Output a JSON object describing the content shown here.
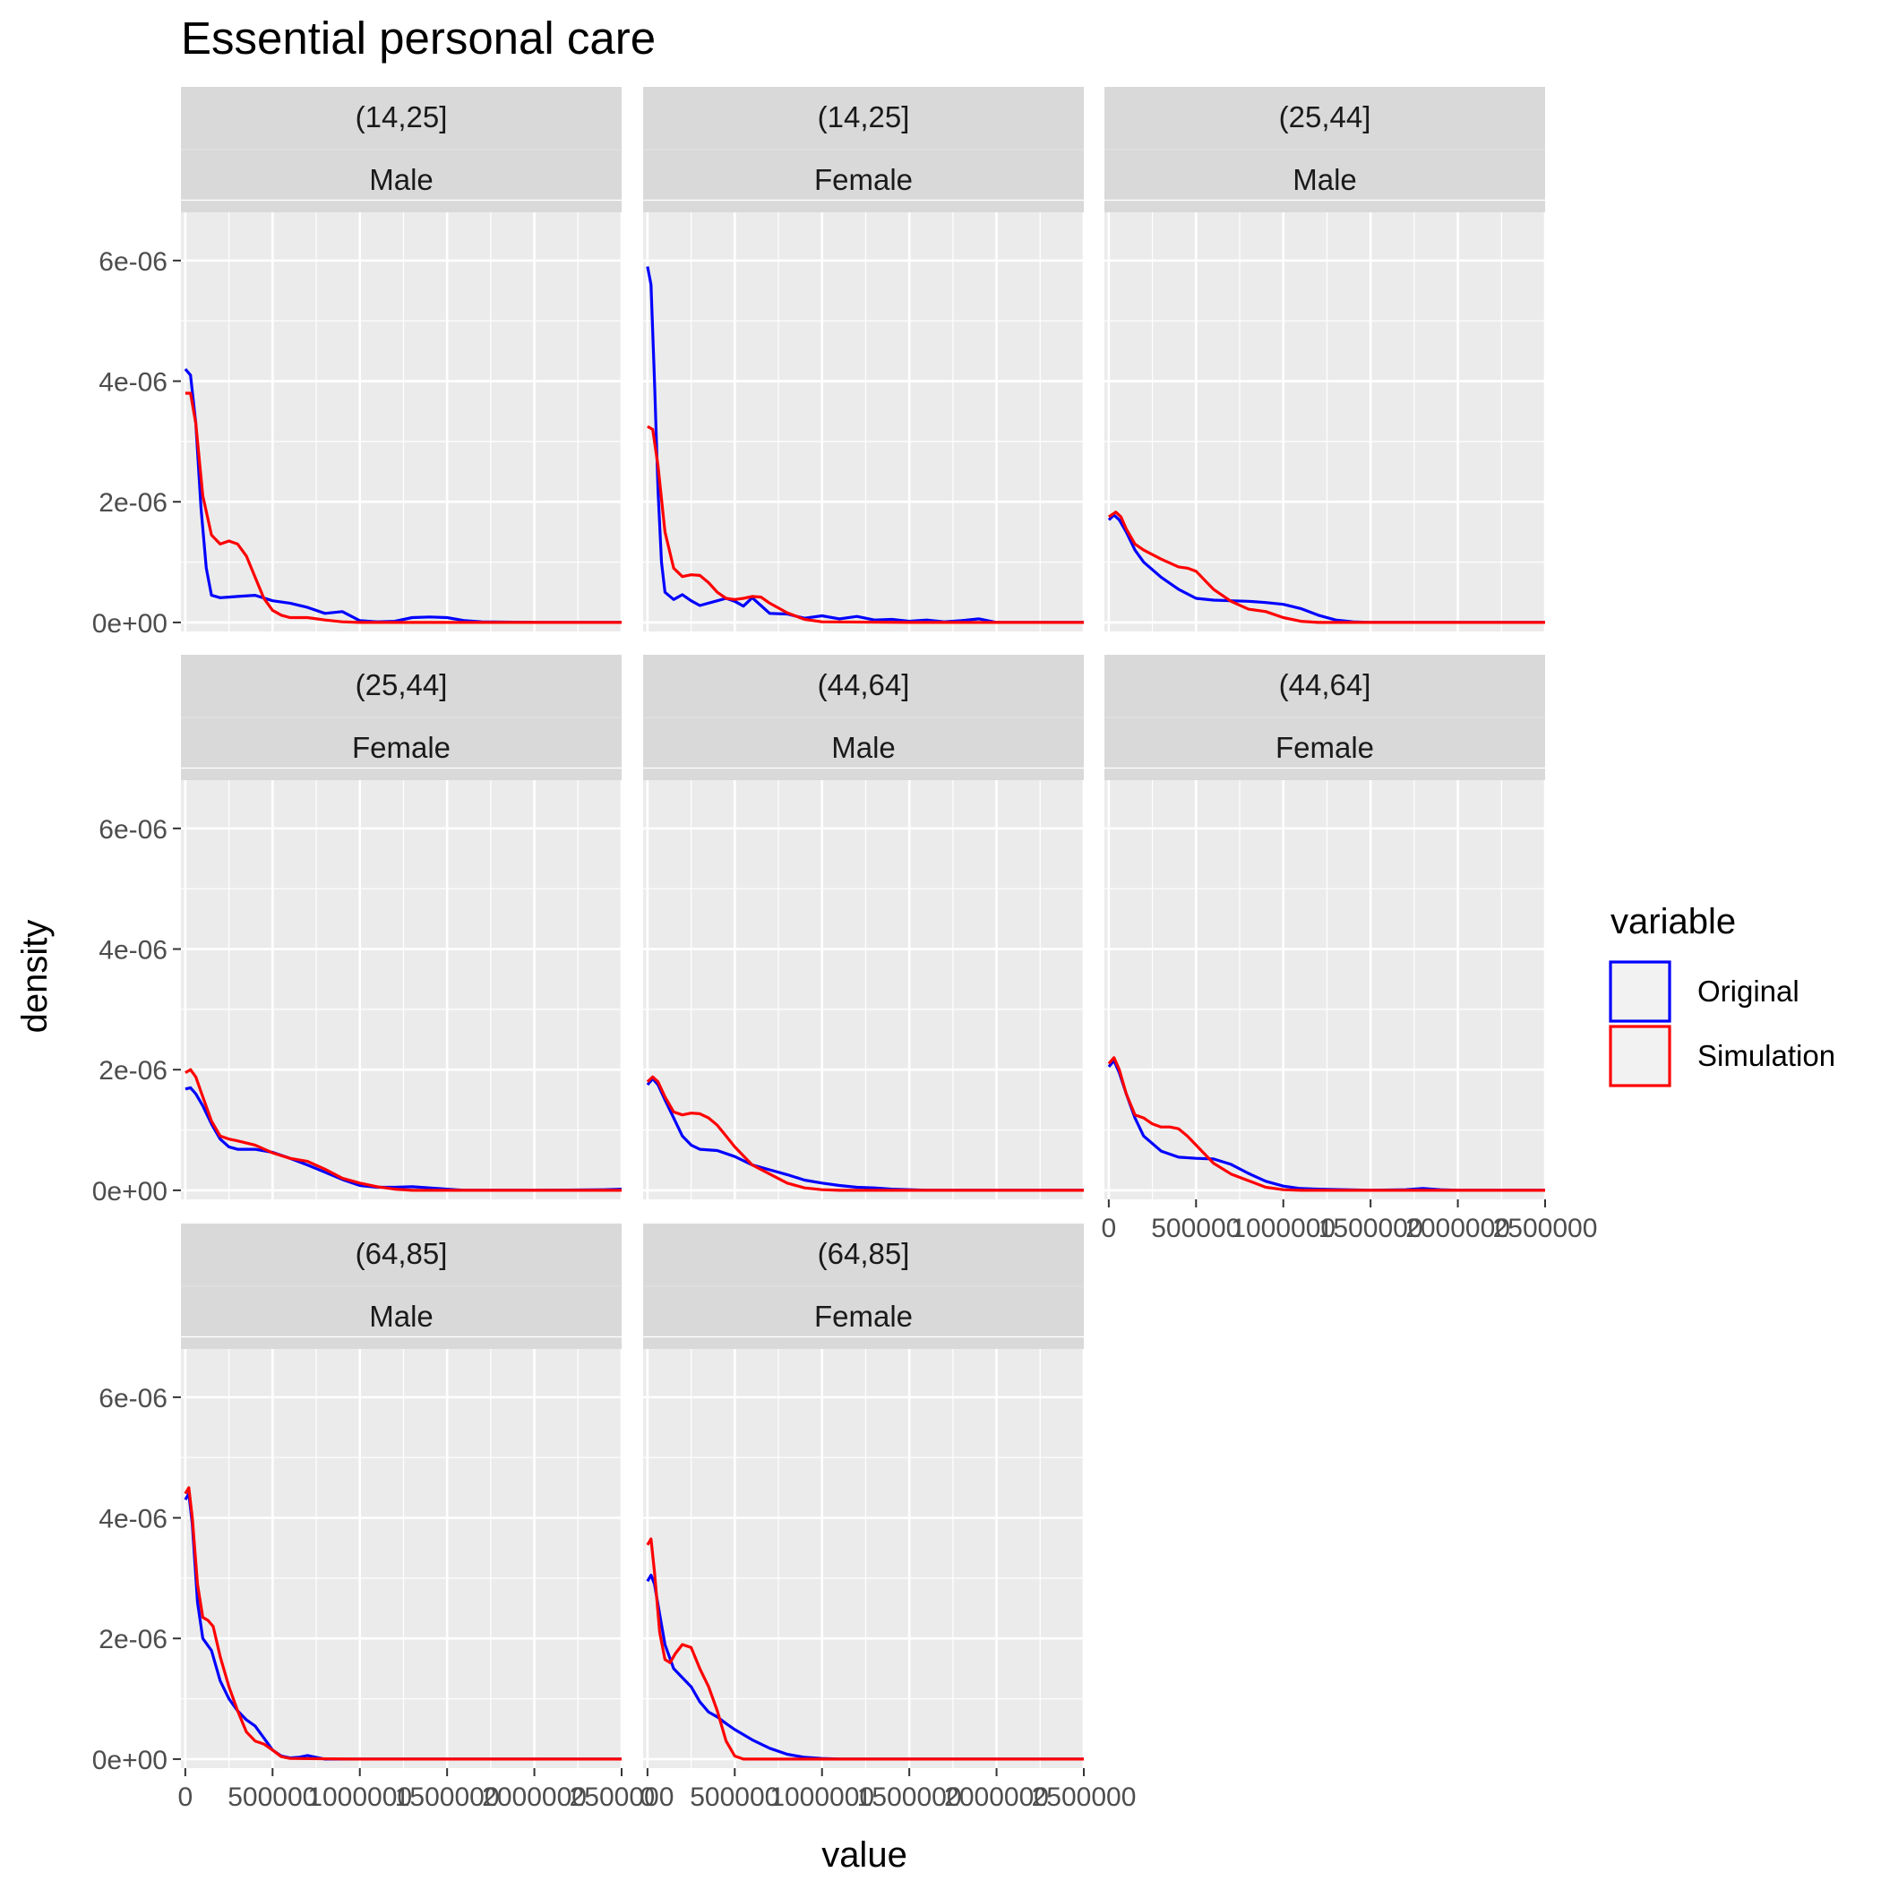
{
  "chart_data": {
    "type": "line",
    "title": "Essential personal care",
    "xlabel": "value",
    "ylabel": "density",
    "xlim": [
      -25000,
      2500000
    ],
    "ylim": [
      -1.5e-07,
      6.8e-06
    ],
    "x_ticks": [
      0,
      500000,
      1000000,
      1500000,
      2000000,
      2500000
    ],
    "x_tick_labels": [
      "0",
      "500000",
      "1000000",
      "1500000",
      "2000000",
      "2500000"
    ],
    "y_ticks": [
      0,
      2e-06,
      4e-06,
      6e-06
    ],
    "y_tick_labels": [
      "0e+00",
      "2e-06",
      "4e-06",
      "6e-06"
    ],
    "grid": true,
    "legend": {
      "title": "variable",
      "position": "right",
      "entries": [
        {
          "label": "Original",
          "color": "#0000FF"
        },
        {
          "label": "Simulation",
          "color": "#FF0000"
        }
      ]
    },
    "colors": {
      "panel_bg": "#EBEBEB",
      "strip_bg": "#D9D9D9",
      "grid": "#FFFFFF",
      "Original": "#0000FF",
      "Simulation": "#FF0000"
    },
    "panels": [
      {
        "age": "(14,25]",
        "sex": "Male",
        "series": [
          {
            "name": "Original",
            "x": [
              0,
              30000,
              60000,
              90000,
              120000,
              150000,
              200000,
              300000,
              400000,
              500000,
              600000,
              700000,
              800000,
              900000,
              1000000,
              1100000,
              1200000,
              1300000,
              1400000,
              1500000,
              1600000,
              1700000,
              2000000,
              2500000
            ],
            "y": [
              4.2e-06,
              4.1e-06,
              3.3e-06,
              1.9e-06,
              9e-07,
              4.5e-07,
              4.1e-07,
              4.3e-07,
              4.5e-07,
              3.6e-07,
              3.2e-07,
              2.5e-07,
              1.5e-07,
              1.8e-07,
              3e-08,
              1e-08,
              2e-08,
              8e-08,
              9e-08,
              8e-08,
              3e-08,
              1e-08,
              0,
              0
            ]
          },
          {
            "name": "Simulation",
            "x": [
              0,
              30000,
              60000,
              100000,
              150000,
              200000,
              250000,
              300000,
              350000,
              400000,
              450000,
              500000,
              550000,
              600000,
              700000,
              800000,
              900000,
              1000000,
              1500000,
              2500000
            ],
            "y": [
              3.8e-06,
              3.8e-06,
              3.3e-06,
              2.1e-06,
              1.45e-06,
              1.3e-06,
              1.35e-06,
              1.3e-06,
              1.1e-06,
              7.5e-07,
              4e-07,
              2e-07,
              1.2e-07,
              8e-08,
              8e-08,
              4e-08,
              1e-08,
              0,
              0,
              0
            ]
          }
        ]
      },
      {
        "age": "(14,25]",
        "sex": "Female",
        "series": [
          {
            "name": "Original",
            "x": [
              0,
              20000,
              40000,
              60000,
              80000,
              100000,
              150000,
              200000,
              250000,
              300000,
              400000,
              450000,
              500000,
              550000,
              600000,
              650000,
              700000,
              800000,
              900000,
              1000000,
              1100000,
              1200000,
              1300000,
              1400000,
              1500000,
              1600000,
              1700000,
              1800000,
              1900000,
              2000000,
              2500000
            ],
            "y": [
              5.9e-06,
              5.6e-06,
              4e-06,
              2.2e-06,
              1e-06,
              5e-07,
              3.8e-07,
              4.6e-07,
              3.6e-07,
              2.8e-07,
              3.6e-07,
              4e-07,
              3.5e-07,
              2.7e-07,
              4.1e-07,
              2.8e-07,
              1.5e-07,
              1.4e-07,
              7e-08,
              1.1e-07,
              6e-08,
              1e-07,
              4e-08,
              5e-08,
              2e-08,
              4e-08,
              1e-08,
              3e-08,
              6e-08,
              0,
              0
            ]
          },
          {
            "name": "Simulation",
            "x": [
              0,
              30000,
              60000,
              100000,
              150000,
              200000,
              250000,
              300000,
              350000,
              400000,
              450000,
              500000,
              550000,
              600000,
              650000,
              700000,
              800000,
              900000,
              1000000,
              1500000,
              2500000
            ],
            "y": [
              3.25e-06,
              3.2e-06,
              2.6e-06,
              1.5e-06,
              9e-07,
              7.6e-07,
              7.9e-07,
              7.8e-07,
              6.6e-07,
              5e-07,
              4e-07,
              3.8e-07,
              4e-07,
              4.3e-07,
              4.2e-07,
              3.2e-07,
              1.6e-07,
              5e-08,
              1e-08,
              0,
              0
            ]
          }
        ]
      },
      {
        "age": "(25,44]",
        "sex": "Male",
        "series": [
          {
            "name": "Original",
            "x": [
              0,
              30000,
              60000,
              100000,
              150000,
              200000,
              300000,
              400000,
              500000,
              600000,
              700000,
              800000,
              900000,
              1000000,
              1100000,
              1200000,
              1300000,
              1400000,
              1500000,
              2000000,
              2500000
            ],
            "y": [
              1.7e-06,
              1.78e-06,
              1.7e-06,
              1.5e-06,
              1.2e-06,
              1e-06,
              7.5e-07,
              5.5e-07,
              4e-07,
              3.7e-07,
              3.6e-07,
              3.5e-07,
              3.3e-07,
              3e-07,
              2.3e-07,
              1.2e-07,
              4e-08,
              1e-08,
              0,
              0,
              0
            ]
          },
          {
            "name": "Simulation",
            "x": [
              0,
              40000,
              70000,
              100000,
              150000,
              200000,
              300000,
              400000,
              450000,
              500000,
              550000,
              600000,
              650000,
              700000,
              800000,
              900000,
              1000000,
              1100000,
              1200000,
              1500000,
              2500000
            ],
            "y": [
              1.75e-06,
              1.83e-06,
              1.75e-06,
              1.55e-06,
              1.3e-06,
              1.2e-06,
              1.05e-06,
              9.2e-07,
              9e-07,
              8.5e-07,
              7e-07,
              5.5e-07,
              4.5e-07,
              3.5e-07,
              2.2e-07,
              1.8e-07,
              8e-08,
              2e-08,
              0,
              0,
              0
            ]
          }
        ]
      },
      {
        "age": "(25,44]",
        "sex": "Female",
        "series": [
          {
            "name": "Original",
            "x": [
              0,
              30000,
              60000,
              100000,
              150000,
              200000,
              250000,
              300000,
              400000,
              500000,
              600000,
              700000,
              800000,
              900000,
              1000000,
              1100000,
              1200000,
              1300000,
              1400000,
              1500000,
              1600000,
              2000000,
              2400000,
              2500000
            ],
            "y": [
              1.68e-06,
              1.7e-06,
              1.6e-06,
              1.4e-06,
              1.1e-06,
              8.5e-07,
              7.2e-07,
              6.8e-07,
              6.8e-07,
              6.3e-07,
              5.3e-07,
              4.2e-07,
              3e-07,
              1.8e-07,
              8e-08,
              5e-08,
              5e-08,
              6e-08,
              4e-08,
              2e-08,
              0,
              0,
              1e-08,
              2e-08
            ]
          },
          {
            "name": "Simulation",
            "x": [
              0,
              30000,
              60000,
              100000,
              150000,
              200000,
              250000,
              300000,
              400000,
              500000,
              600000,
              700000,
              800000,
              900000,
              1000000,
              1100000,
              1200000,
              1300000,
              1500000,
              2500000
            ],
            "y": [
              1.95e-06,
              2e-06,
              1.88e-06,
              1.55e-06,
              1.15e-06,
              9e-07,
              8.5e-07,
              8.2e-07,
              7.5e-07,
              6.2e-07,
              5.3e-07,
              4.8e-07,
              3.5e-07,
              2e-07,
              1.2e-07,
              6e-08,
              2e-08,
              0,
              0,
              0
            ]
          }
        ]
      },
      {
        "age": "(44,64]",
        "sex": "Male",
        "series": [
          {
            "name": "Original",
            "x": [
              0,
              30000,
              60000,
              100000,
              150000,
              200000,
              250000,
              300000,
              400000,
              500000,
              600000,
              700000,
              800000,
              900000,
              1000000,
              1100000,
              1200000,
              1300000,
              1400000,
              1500000,
              1600000,
              2000000,
              2500000
            ],
            "y": [
              1.75e-06,
              1.85e-06,
              1.75e-06,
              1.5e-06,
              1.2e-06,
              9e-07,
              7.5e-07,
              6.8e-07,
              6.6e-07,
              5.6e-07,
              4.2e-07,
              3.4e-07,
              2.6e-07,
              1.7e-07,
              1.2e-07,
              8e-08,
              5e-08,
              4e-08,
              2e-08,
              1e-08,
              0,
              0,
              0
            ]
          },
          {
            "name": "Simulation",
            "x": [
              0,
              30000,
              60000,
              100000,
              150000,
              200000,
              250000,
              300000,
              350000,
              400000,
              450000,
              500000,
              600000,
              700000,
              800000,
              900000,
              1000000,
              1100000,
              1500000,
              2500000
            ],
            "y": [
              1.8e-06,
              1.88e-06,
              1.8e-06,
              1.55e-06,
              1.3e-06,
              1.25e-06,
              1.28e-06,
              1.27e-06,
              1.2e-06,
              1.08e-06,
              9e-07,
              7.2e-07,
              4.2e-07,
              2.7e-07,
              1.2e-07,
              4e-08,
              1e-08,
              0,
              0,
              0
            ]
          }
        ]
      },
      {
        "age": "(44,64]",
        "sex": "Female",
        "series": [
          {
            "name": "Original",
            "x": [
              0,
              30000,
              60000,
              100000,
              150000,
              200000,
              300000,
              400000,
              500000,
              600000,
              700000,
              800000,
              900000,
              1000000,
              1100000,
              1200000,
              1500000,
              1700000,
              1800000,
              1900000,
              2000000,
              2500000
            ],
            "y": [
              2.05e-06,
              2.15e-06,
              1.95e-06,
              1.6e-06,
              1.2e-06,
              9e-07,
              6.5e-07,
              5.5e-07,
              5.3e-07,
              5.2e-07,
              4.3e-07,
              2.8e-07,
              1.5e-07,
              7e-08,
              3e-08,
              2e-08,
              0,
              1e-08,
              3e-08,
              1e-08,
              0,
              0
            ]
          },
          {
            "name": "Simulation",
            "x": [
              0,
              30000,
              60000,
              100000,
              150000,
              200000,
              250000,
              300000,
              350000,
              400000,
              450000,
              500000,
              550000,
              600000,
              700000,
              800000,
              900000,
              1000000,
              1100000,
              1500000,
              2500000
            ],
            "y": [
              2.1e-06,
              2.2e-06,
              2e-06,
              1.6e-06,
              1.25e-06,
              1.2e-06,
              1.1e-06,
              1.05e-06,
              1.05e-06,
              1.02e-06,
              9e-07,
              7.5e-07,
              6e-07,
              4.5e-07,
              2.7e-07,
              1.6e-07,
              5e-08,
              1e-08,
              0,
              0,
              0
            ]
          }
        ]
      },
      {
        "age": "(64,85]",
        "sex": "Male",
        "series": [
          {
            "name": "Original",
            "x": [
              0,
              20000,
              40000,
              70000,
              100000,
              150000,
              200000,
              250000,
              300000,
              350000,
              400000,
              450000,
              500000,
              550000,
              600000,
              650000,
              700000,
              750000,
              800000,
              1000000,
              2500000
            ],
            "y": [
              4.3e-06,
              4.4e-06,
              3.9e-06,
              2.6e-06,
              2e-06,
              1.8e-06,
              1.3e-06,
              1e-06,
              8e-07,
              6.5e-07,
              5.5e-07,
              3.5e-07,
              1.5e-07,
              5e-08,
              2e-08,
              3e-08,
              6e-08,
              3e-08,
              0,
              0,
              0
            ]
          },
          {
            "name": "Simulation",
            "x": [
              0,
              20000,
              40000,
              70000,
              100000,
              130000,
              160000,
              200000,
              250000,
              300000,
              350000,
              400000,
              450000,
              500000,
              550000,
              600000,
              1000000,
              2500000
            ],
            "y": [
              4.4e-06,
              4.5e-06,
              4e-06,
              2.9e-06,
              2.35e-06,
              2.3e-06,
              2.2e-06,
              1.7e-06,
              1.2e-06,
              8e-07,
              4.5e-07,
              3e-07,
              2.5e-07,
              1.5e-07,
              4e-08,
              1e-08,
              0,
              0
            ]
          }
        ]
      },
      {
        "age": "(64,85]",
        "sex": "Female",
        "series": [
          {
            "name": "Original",
            "x": [
              0,
              20000,
              40000,
              70000,
              100000,
              150000,
              200000,
              250000,
              300000,
              350000,
              400000,
              450000,
              500000,
              600000,
              700000,
              800000,
              900000,
              1000000,
              1100000,
              1500000,
              2500000
            ],
            "y": [
              2.95e-06,
              3.05e-06,
              2.9e-06,
              2.4e-06,
              1.9e-06,
              1.5e-06,
              1.35e-06,
              1.2e-06,
              9.5e-07,
              7.8e-07,
              7e-07,
              5.9e-07,
              4.9e-07,
              3.2e-07,
              1.8e-07,
              8e-08,
              3e-08,
              1e-08,
              0,
              0,
              0
            ]
          },
          {
            "name": "Simulation",
            "x": [
              0,
              20000,
              40000,
              70000,
              100000,
              130000,
              160000,
              200000,
              250000,
              300000,
              350000,
              400000,
              450000,
              500000,
              550000,
              600000,
              700000,
              1000000,
              2500000
            ],
            "y": [
              3.55e-06,
              3.65e-06,
              3.1e-06,
              2.1e-06,
              1.65e-06,
              1.6e-06,
              1.75e-06,
              1.9e-06,
              1.85e-06,
              1.5e-06,
              1.2e-06,
              8e-07,
              3e-07,
              5e-08,
              0,
              0,
              0,
              0,
              0
            ]
          }
        ]
      }
    ]
  }
}
